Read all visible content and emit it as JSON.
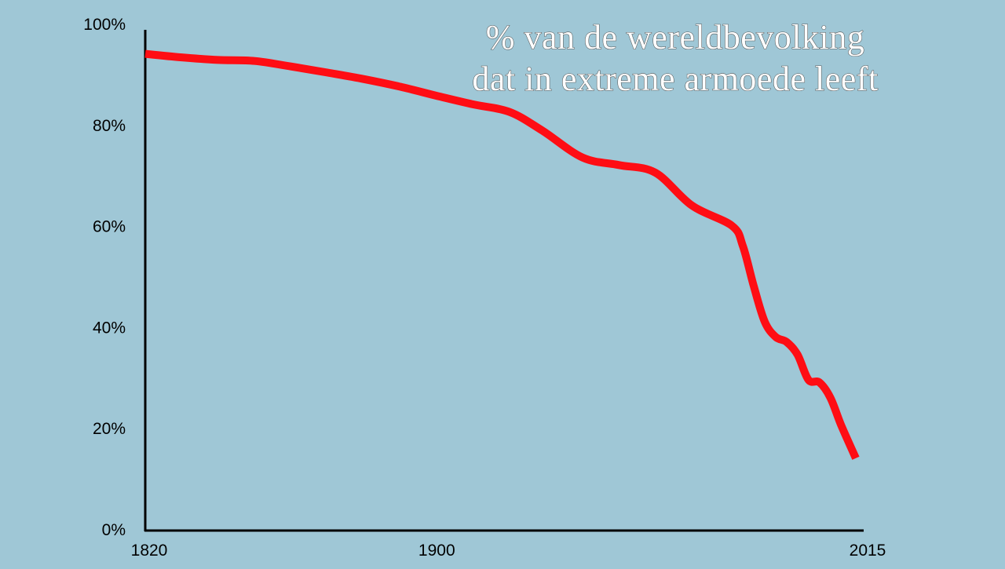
{
  "chart_data": {
    "type": "line",
    "title_lines": [
      "% van de wereldbevolking",
      "dat in extreme armoede leeft"
    ],
    "xlabel": "",
    "ylabel": "",
    "xlim": [
      1820,
      2015
    ],
    "ylim": [
      0,
      100
    ],
    "x_tick_labels": [
      "1820",
      "1900",
      "2015"
    ],
    "x_tick_values": [
      1820,
      1900,
      2015
    ],
    "y_tick_labels": [
      "0%",
      "20%",
      "40%",
      "60%",
      "80%",
      "100%"
    ],
    "y_tick_values": [
      0,
      20,
      40,
      60,
      80,
      100
    ],
    "grid": false,
    "colors": {
      "background": "#9fc7d6",
      "line": "#ff0d14",
      "axis": "#000000",
      "title_fill": "#ffffff"
    },
    "series": [
      {
        "x": [
          1820,
          1830,
          1840,
          1850,
          1860,
          1870,
          1880,
          1890,
          1900,
          1910,
          1920,
          1929,
          1940,
          1950,
          1960,
          1970,
          1981,
          1984,
          1987,
          1990,
          1993,
          1996,
          1999,
          2002,
          2005,
          2008,
          2011,
          2015
        ],
        "y": [
          94,
          93.3,
          92.8,
          92.6,
          91.5,
          90.3,
          89,
          87.5,
          85.7,
          84,
          82.5,
          78.8,
          73.5,
          72,
          70.5,
          64,
          60,
          56,
          48,
          41,
          38,
          37,
          34.5,
          29.5,
          29,
          26,
          20.5,
          14
        ]
      }
    ]
  }
}
